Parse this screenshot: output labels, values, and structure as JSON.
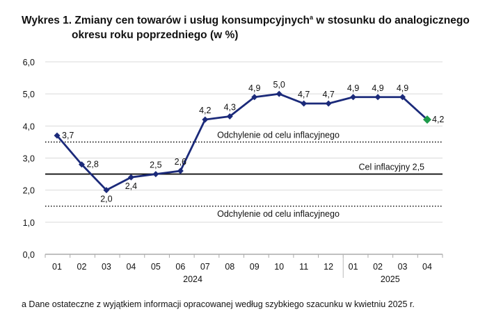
{
  "chart_data": {
    "type": "line",
    "title_line1": "Wykres 1. Zmiany cen towarów i usług konsumpcyjnych",
    "title_sup": "a",
    "title_line1_rest": " w stosunku do analogicznego",
    "title_line2": "okresu roku poprzedniego (w %)",
    "categories": [
      "01",
      "02",
      "03",
      "04",
      "05",
      "06",
      "07",
      "08",
      "09",
      "10",
      "11",
      "12",
      "01",
      "02",
      "03",
      "04"
    ],
    "years": [
      {
        "label": "2024",
        "from": 0,
        "to": 11
      },
      {
        "label": "2025",
        "from": 12,
        "to": 15
      }
    ],
    "values": [
      3.7,
      2.8,
      2.0,
      2.4,
      2.5,
      2.6,
      4.2,
      4.3,
      4.9,
      5.0,
      4.7,
      4.7,
      4.9,
      4.9,
      4.9,
      4.2
    ],
    "value_labels": [
      "3,7",
      "2,8",
      "2,0",
      "2,4",
      "2,5",
      "2,6",
      "4,2",
      "4,3",
      "4,9",
      "5,0",
      "4,7",
      "4,7",
      "4,9",
      "4,9",
      "4,9",
      "4,2"
    ],
    "ylim": [
      0,
      6
    ],
    "yticks": [
      "0,0",
      "1,0",
      "2,0",
      "3,0",
      "4,0",
      "5,0",
      "6,0"
    ],
    "grid": true,
    "series_color": "#1b2a7a",
    "last_point_color": "#1e9a4a",
    "reference_lines": [
      {
        "value": 3.5,
        "style": "dotted",
        "label": "Odchylenie od celu inflacyjnego"
      },
      {
        "value": 2.5,
        "style": "solid",
        "label": "Cel inflacyjny 2,5"
      },
      {
        "value": 1.5,
        "style": "dotted",
        "label": "Odchylenie od celu inflacyjnego"
      }
    ],
    "footnote": "a Dane ostateczne z wyjątkiem informacji opracowanej według szybkiego szacunku w kwietniu 2025 r."
  }
}
